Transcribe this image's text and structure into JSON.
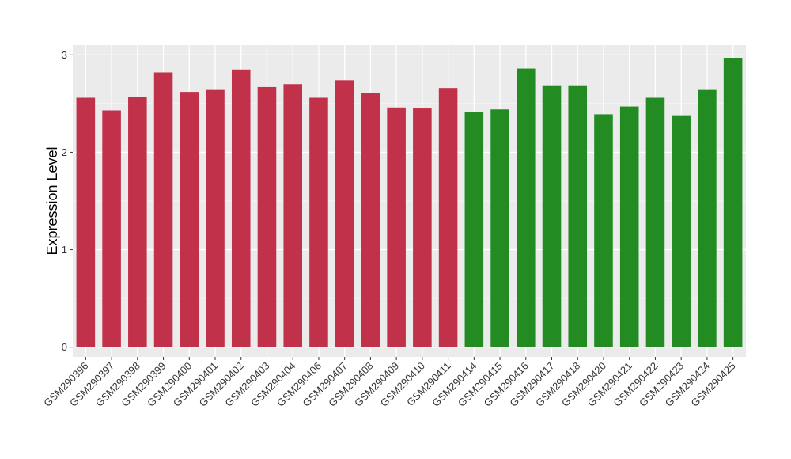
{
  "chart_data": {
    "type": "bar",
    "title": "",
    "xlabel": "",
    "ylabel": "Expression Level",
    "ylim": [
      -0.1,
      3.1
    ],
    "yticks": [
      0,
      1,
      2,
      3
    ],
    "grid": true,
    "categories": [
      "GSM290396",
      "GSM290397",
      "GSM290398",
      "GSM290399",
      "GSM290400",
      "GSM290401",
      "GSM290402",
      "GSM290403",
      "GSM290404",
      "GSM290406",
      "GSM290407",
      "GSM290408",
      "GSM290409",
      "GSM290410",
      "GSM290411",
      "GSM290414",
      "GSM290415",
      "GSM290416",
      "GSM290417",
      "GSM290418",
      "GSM290420",
      "GSM290421",
      "GSM290422",
      "GSM290423",
      "GSM290424",
      "GSM290425"
    ],
    "values": [
      2.56,
      2.43,
      2.57,
      2.82,
      2.62,
      2.64,
      2.85,
      2.67,
      2.7,
      2.56,
      2.74,
      2.61,
      2.46,
      2.45,
      2.66,
      2.41,
      2.44,
      2.86,
      2.68,
      2.68,
      2.39,
      2.47,
      2.56,
      2.38,
      2.64,
      2.97
    ],
    "colors": [
      "#C2314A",
      "#C2314A",
      "#C2314A",
      "#C2314A",
      "#C2314A",
      "#C2314A",
      "#C2314A",
      "#C2314A",
      "#C2314A",
      "#C2314A",
      "#C2314A",
      "#C2314A",
      "#C2314A",
      "#C2314A",
      "#C2314A",
      "#228B22",
      "#228B22",
      "#228B22",
      "#228B22",
      "#228B22",
      "#228B22",
      "#228B22",
      "#228B22",
      "#228B22",
      "#228B22",
      "#228B22"
    ],
    "panel_background": "#EBEBEB",
    "grid_color": "#FFFFFF"
  }
}
